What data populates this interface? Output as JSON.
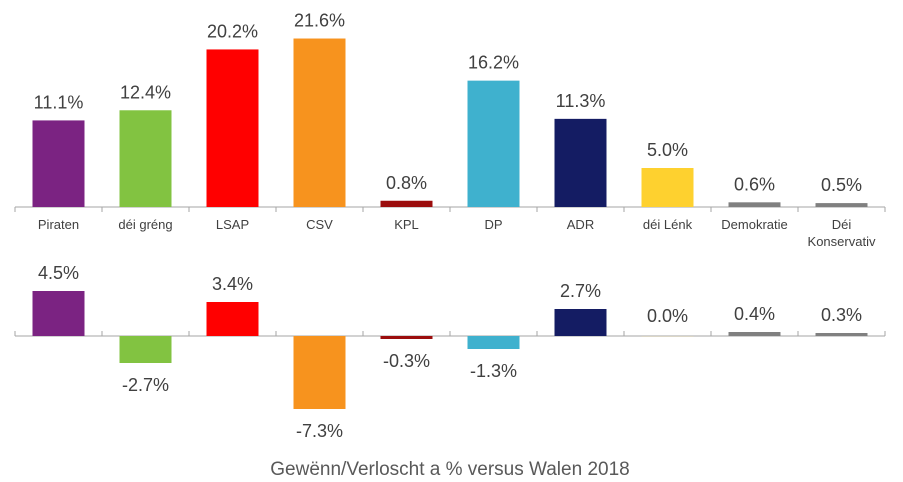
{
  "chart_data": [
    {
      "type": "bar",
      "categories": [
        "Piraten",
        "déi gréng",
        "LSAP",
        "CSV",
        "KPL",
        "DP",
        "ADR",
        "déi Lénk",
        "Demokratie",
        "Déi Konservativ"
      ],
      "values": [
        11.1,
        12.4,
        20.2,
        21.6,
        0.8,
        16.2,
        11.3,
        5.0,
        0.6,
        0.5
      ],
      "value_labels": [
        "11.1%",
        "12.4%",
        "20.2%",
        "21.6%",
        "0.8%",
        "16.2%",
        "11.3%",
        "5.0%",
        "0.6%",
        "0.5%"
      ],
      "colors": [
        "#7b2382",
        "#82c341",
        "#ff0000",
        "#f7931e",
        "#9b0d0d",
        "#3fb1ce",
        "#141c63",
        "#fed12f",
        "#808080",
        "#808080"
      ]
    },
    {
      "type": "bar",
      "title": "Gewënn/Verloscht a % versus Walen 2018",
      "categories": [
        "Piraten",
        "déi gréng",
        "LSAP",
        "CSV",
        "KPL",
        "DP",
        "ADR",
        "déi Lénk",
        "Demokratie",
        "Déi Konservativ"
      ],
      "values": [
        4.5,
        -2.7,
        3.4,
        -7.3,
        -0.3,
        -1.3,
        2.7,
        0.0,
        0.4,
        0.3
      ],
      "value_labels": [
        "4.5%",
        "-2.7%",
        "3.4%",
        "-7.3%",
        "-0.3%",
        "-1.3%",
        "2.7%",
        "0.0%",
        "0.4%",
        "0.3%"
      ],
      "colors": [
        "#7b2382",
        "#82c341",
        "#ff0000",
        "#f7931e",
        "#9b0d0d",
        "#3fb1ce",
        "#141c63",
        "#fed12f",
        "#808080",
        "#808080"
      ]
    }
  ]
}
